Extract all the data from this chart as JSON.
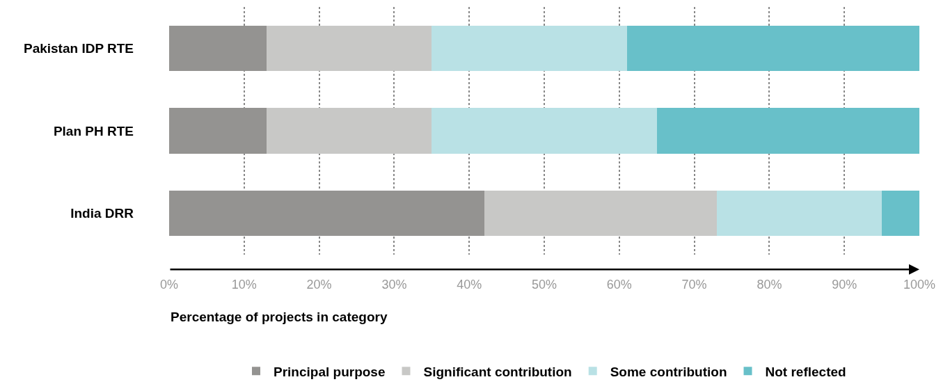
{
  "chart_data": {
    "type": "bar",
    "orientation": "horizontal",
    "stacked": true,
    "categories": [
      "Pakistan IDP RTE",
      "Plan PH RTE",
      "India DRR"
    ],
    "xlabel": "Percentage of projects in category",
    "series": [
      {
        "name": "Principal purpose",
        "color": "#949391",
        "values": [
          13,
          13,
          42
        ]
      },
      {
        "name": "Significant contribution",
        "color": "#c8c8c6",
        "values": [
          22,
          22,
          31
        ]
      },
      {
        "name": "Some contribution",
        "color": "#b9e1e5",
        "values": [
          26,
          30,
          22
        ]
      },
      {
        "name": "Not reflected",
        "color": "#68c0c9",
        "values": [
          39,
          35,
          5
        ]
      }
    ],
    "xlim": [
      0,
      100
    ],
    "xticks": [
      {
        "value": 0,
        "label": "0%"
      },
      {
        "value": 10,
        "label": "10%"
      },
      {
        "value": 20,
        "label": "20%"
      },
      {
        "value": 30,
        "label": "30%"
      },
      {
        "value": 40,
        "label": "40%"
      },
      {
        "value": 50,
        "label": "50%"
      },
      {
        "value": 60,
        "label": "60%"
      },
      {
        "value": 70,
        "label": "70%"
      },
      {
        "value": 80,
        "label": "80%"
      },
      {
        "value": 90,
        "label": "90%"
      },
      {
        "value": 100,
        "label": "100%"
      }
    ],
    "grid": "x",
    "legend": "bottom"
  }
}
